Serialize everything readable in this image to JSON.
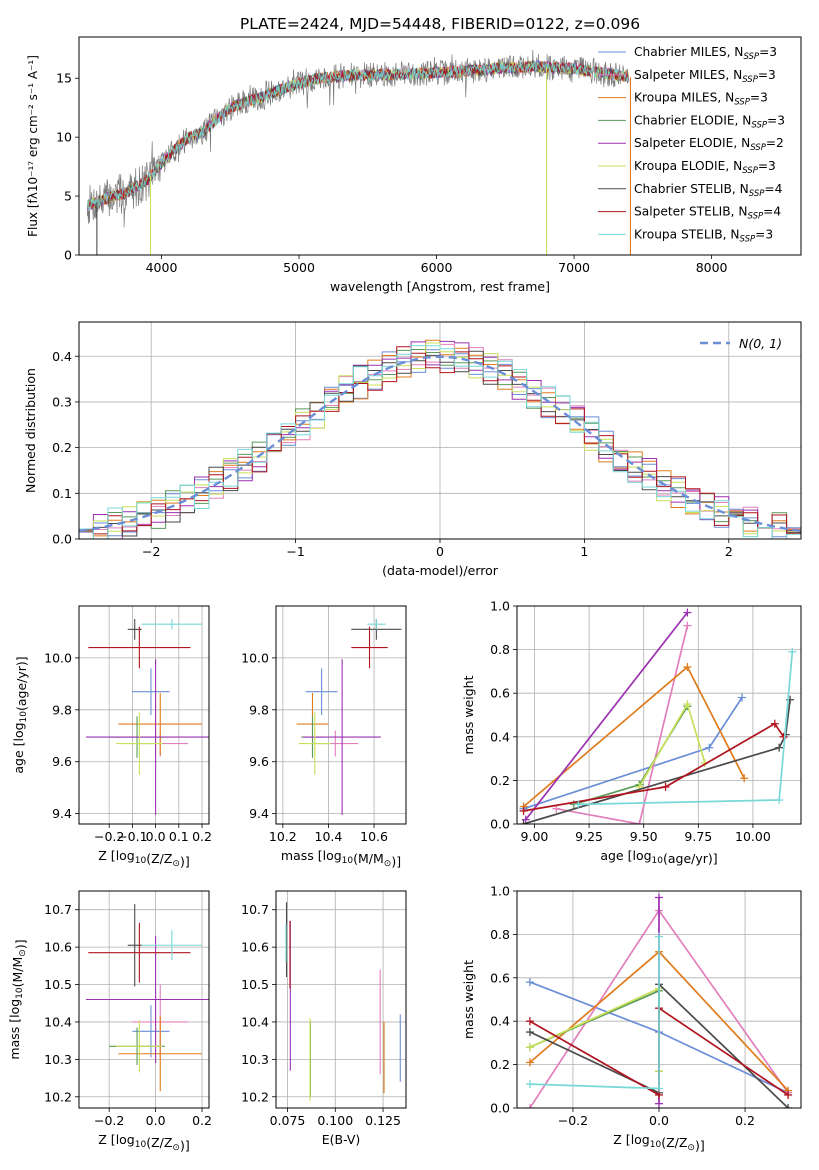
{
  "figure_title": "PLATE=2424, MJD=54448, FIBERID=0122, z=0.096",
  "colors": {
    "Chabrier MILES": "#6a8fd8",
    "Salpeter MILES": "#e27fbc",
    "Kroupa MILES": "#e07b1c",
    "Chabrier ELODIE": "#5a9a5a",
    "Salpeter ELODIE": "#9b30b0",
    "Kroupa ELODIE": "#c8e05a",
    "Chabrier STELIB": "#4a4a4a",
    "Salpeter STELIB": "#b0141e",
    "Kroupa STELIB": "#78d8d8"
  },
  "chart_data": [
    {
      "id": "spectrum",
      "type": "line",
      "title": "PLATE=2424, MJD=54448, FIBERID=0122, z=0.096",
      "xlabel": "wavelength [Angstrom, rest frame]",
      "ylabel": "Flux [fλ10⁻¹⁷ erg cm⁻² s⁻¹ A⁻¹]",
      "xlim": [
        3400,
        8650
      ],
      "ylim": [
        0,
        18.5
      ],
      "xticks": [
        4000,
        5000,
        6000,
        7000,
        8000
      ],
      "yticks": [
        0,
        5,
        10,
        15
      ],
      "grid": false,
      "legend_position": "top-right",
      "legend": [
        {
          "model": "Chabrier MILES",
          "n": "3"
        },
        {
          "model": "Salpeter MILES",
          "n": "3"
        },
        {
          "model": "Kroupa MILES",
          "n": "3"
        },
        {
          "model": "Chabrier ELODIE",
          "n": "3"
        },
        {
          "model": "Salpeter ELODIE",
          "n": "2"
        },
        {
          "model": "Kroupa ELODIE",
          "n": "3"
        },
        {
          "model": "Chabrier STELIB",
          "n": "4"
        },
        {
          "model": "Salpeter STELIB",
          "n": "4"
        },
        {
          "model": "Kroupa STELIB",
          "n": "3"
        }
      ],
      "continuum": [
        [
          3460,
          4.2
        ],
        [
          3600,
          4.8
        ],
        [
          3750,
          5.3
        ],
        [
          3900,
          6.4
        ],
        [
          4000,
          7.8
        ],
        [
          4100,
          9.0
        ],
        [
          4200,
          10.0
        ],
        [
          4300,
          10.4
        ],
        [
          4400,
          11.5
        ],
        [
          4500,
          12.5
        ],
        [
          4700,
          13.3
        ],
        [
          4900,
          14.2
        ],
        [
          5100,
          14.9
        ],
        [
          5300,
          15.2
        ],
        [
          5600,
          15.3
        ],
        [
          5900,
          15.4
        ],
        [
          6100,
          15.5
        ],
        [
          6300,
          15.7
        ],
        [
          6500,
          15.9
        ],
        [
          6700,
          16.0
        ],
        [
          7000,
          15.8
        ],
        [
          7300,
          15.3
        ],
        [
          7400,
          15.1
        ]
      ],
      "dropouts": [
        {
          "x": 3530,
          "model": "Chabrier STELIB"
        },
        {
          "x": 3920,
          "model": "Kroupa ELODIE"
        },
        {
          "x": 6800,
          "model": "Kroupa ELODIE"
        },
        {
          "x": 7410,
          "model": "Kroupa MILES"
        }
      ]
    },
    {
      "id": "residuals",
      "type": "histogram",
      "xlabel": "(data-model)/error",
      "ylabel": "Normed distribution",
      "xlim": [
        -2.5,
        2.5
      ],
      "ylim": [
        0,
        0.475
      ],
      "xticks": [
        -2,
        -1,
        0,
        1,
        2
      ],
      "yticks": [
        0,
        0.1,
        0.2,
        0.3,
        0.4
      ],
      "grid": true,
      "bin_width": 0.1,
      "reference_curve": "gaussian",
      "legend_position": "top-right",
      "legend_label": "N(0, 1)",
      "reference_color": "#6a8fd8"
    },
    {
      "id": "age-vs-Z",
      "type": "errorbar",
      "xlabel": "Z [log10(Z/Z⊙)]",
      "ylabel": "age [log10(age/yr)]",
      "xlim": [
        -0.33,
        0.23
      ],
      "ylim": [
        9.36,
        10.2
      ],
      "xticks": [
        -0.2,
        -0.1,
        0.0,
        0.1,
        0.2
      ],
      "yticks": [
        9.4,
        9.6,
        9.8,
        10.0
      ],
      "grid": true,
      "points": [
        {
          "model": "Chabrier MILES",
          "x": -0.02,
          "xerr": 0.08,
          "y": 9.87,
          "yerr": 0.09
        },
        {
          "model": "Salpeter MILES",
          "x": 0.02,
          "xerr": 0.12,
          "y": 9.67,
          "yerr": 0.05
        },
        {
          "model": "Kroupa MILES",
          "x": 0.02,
          "xerr": 0.18,
          "y": 9.745,
          "yerr": 0.12
        },
        {
          "model": "Chabrier ELODIE",
          "x": -0.08,
          "xerr": 0.12,
          "y": 9.695,
          "yerr": 0.08
        },
        {
          "model": "Salpeter ELODIE",
          "x": 0.0,
          "xerr": 0.3,
          "y": 9.695,
          "yerr": 0.3
        },
        {
          "model": "Kroupa ELODIE",
          "x": -0.07,
          "xerr": 0.1,
          "y": 9.67,
          "yerr": 0.12
        },
        {
          "model": "Chabrier STELIB",
          "x": -0.09,
          "xerr": 0.03,
          "y": 10.11,
          "yerr": 0.04
        },
        {
          "model": "Salpeter STELIB",
          "x": -0.07,
          "xerr": 0.22,
          "y": 10.04,
          "yerr": 0.08
        },
        {
          "model": "Kroupa STELIB",
          "x": 0.07,
          "xerr": 0.13,
          "y": 10.13,
          "yerr": 0.02
        }
      ]
    },
    {
      "id": "age-vs-mass",
      "type": "errorbar",
      "xlabel": "mass [log10(M/M⊙)]",
      "ylabel": "",
      "xlim": [
        10.17,
        10.74
      ],
      "ylim": [
        9.36,
        10.2
      ],
      "xticks": [
        10.2,
        10.4,
        10.6
      ],
      "yticks": [
        9.4,
        9.6,
        9.8,
        10.0
      ],
      "grid": true,
      "points": [
        {
          "model": "Chabrier MILES",
          "x": 10.37,
          "xerr": 0.07,
          "y": 9.87,
          "yerr": 0.09
        },
        {
          "model": "Salpeter MILES",
          "x": 10.43,
          "xerr": 0.1,
          "y": 9.67,
          "yerr": 0.05
        },
        {
          "model": "Kroupa MILES",
          "x": 10.33,
          "xerr": 0.07,
          "y": 9.745,
          "yerr": 0.12
        },
        {
          "model": "Chabrier ELODIE",
          "x": 10.33,
          "xerr": 0.05,
          "y": 9.695,
          "yerr": 0.08
        },
        {
          "model": "Salpeter ELODIE",
          "x": 10.46,
          "xerr": 0.17,
          "y": 9.695,
          "yerr": 0.3
        },
        {
          "model": "Kroupa ELODIE",
          "x": 10.34,
          "xerr": 0.07,
          "y": 9.67,
          "yerr": 0.12
        },
        {
          "model": "Chabrier STELIB",
          "x": 10.61,
          "xerr": 0.11,
          "y": 10.11,
          "yerr": 0.04
        },
        {
          "model": "Salpeter STELIB",
          "x": 10.58,
          "xerr": 0.08,
          "y": 10.04,
          "yerr": 0.08
        },
        {
          "model": "Kroupa STELIB",
          "x": 10.61,
          "xerr": 0.04,
          "y": 10.13,
          "yerr": 0.02
        }
      ]
    },
    {
      "id": "massweight-vs-age",
      "type": "line",
      "xlabel": "age [log10(age/yr)]",
      "ylabel": "mass weight",
      "xlim": [
        8.92,
        10.22
      ],
      "ylim": [
        0,
        1.0
      ],
      "xticks": [
        9.0,
        9.25,
        9.5,
        9.75,
        10.0
      ],
      "yticks": [
        0.0,
        0.2,
        0.4,
        0.6,
        0.8,
        1.0
      ],
      "grid": true,
      "series": [
        {
          "model": "Chabrier MILES",
          "x": [
            8.95,
            9.8,
            9.95
          ],
          "y": [
            0.07,
            0.35,
            0.58
          ]
        },
        {
          "model": "Salpeter MILES",
          "x": [
            9.1,
            9.48,
            9.7
          ],
          "y": [
            0.07,
            0.0,
            0.91
          ]
        },
        {
          "model": "Kroupa MILES",
          "x": [
            8.95,
            9.7,
            9.96
          ],
          "y": [
            0.08,
            0.72,
            0.21
          ]
        },
        {
          "model": "Chabrier ELODIE",
          "x": [
            9.18,
            9.48,
            9.7
          ],
          "y": [
            0.09,
            0.18,
            0.54
          ]
        },
        {
          "model": "Salpeter ELODIE",
          "x": [
            8.96,
            9.7
          ],
          "y": [
            0.02,
            0.97
          ]
        },
        {
          "model": "Kroupa ELODIE",
          "x": [
            9.48,
            9.7,
            9.78
          ],
          "y": [
            0.17,
            0.55,
            0.28
          ]
        },
        {
          "model": "Chabrier STELIB",
          "x": [
            8.95,
            10.12,
            10.15,
            10.17
          ],
          "y": [
            0.0,
            0.35,
            0.41,
            0.57
          ]
        },
        {
          "model": "Salpeter STELIB",
          "x": [
            8.95,
            9.6,
            10.1,
            10.14
          ],
          "y": [
            0.06,
            0.17,
            0.46,
            0.4
          ]
        },
        {
          "model": "Kroupa STELIB",
          "x": [
            9.2,
            10.12,
            10.18
          ],
          "y": [
            0.09,
            0.11,
            0.79
          ]
        }
      ]
    },
    {
      "id": "mass-vs-Z",
      "type": "errorbar",
      "xlabel": "Z [log10(Z/Z⊙)]",
      "ylabel": "mass [log10(M/M⊙)]",
      "xlim": [
        -0.33,
        0.23
      ],
      "ylim": [
        10.17,
        10.75
      ],
      "xticks": [
        -0.2,
        0.0,
        0.2
      ],
      "yticks": [
        10.2,
        10.3,
        10.4,
        10.5,
        10.6,
        10.7
      ],
      "grid": true,
      "points": [
        {
          "model": "Chabrier MILES",
          "x": -0.02,
          "xerr": 0.08,
          "y": 10.375,
          "yerr": 0.07
        },
        {
          "model": "Salpeter MILES",
          "x": 0.02,
          "xerr": 0.12,
          "y": 10.4,
          "yerr": 0.1
        },
        {
          "model": "Kroupa MILES",
          "x": 0.02,
          "xerr": 0.18,
          "y": 10.315,
          "yerr": 0.1
        },
        {
          "model": "Chabrier ELODIE",
          "x": -0.08,
          "xerr": 0.12,
          "y": 10.335,
          "yerr": 0.05
        },
        {
          "model": "Salpeter ELODIE",
          "x": 0.0,
          "xerr": 0.3,
          "y": 10.46,
          "yerr": 0.17
        },
        {
          "model": "Kroupa ELODIE",
          "x": -0.07,
          "xerr": 0.1,
          "y": 10.335,
          "yerr": 0.07
        },
        {
          "model": "Chabrier STELIB",
          "x": -0.09,
          "xerr": 0.03,
          "y": 10.605,
          "yerr": 0.11
        },
        {
          "model": "Salpeter STELIB",
          "x": -0.07,
          "xerr": 0.22,
          "y": 10.585,
          "yerr": 0.08
        },
        {
          "model": "Kroupa STELIB",
          "x": 0.07,
          "xerr": 0.13,
          "y": 10.605,
          "yerr": 0.04
        }
      ]
    },
    {
      "id": "mass-vs-ebv",
      "type": "errorbar",
      "xlabel": "E(B-V)",
      "ylabel": "",
      "xlim": [
        0.069,
        0.137
      ],
      "ylim": [
        10.17,
        10.75
      ],
      "xticks": [
        0.075,
        0.1,
        0.125
      ],
      "yticks": [
        10.2,
        10.3,
        10.4,
        10.5,
        10.6,
        10.7
      ],
      "grid": true,
      "points": [
        {
          "model": "Chabrier MILES",
          "x": 0.134,
          "xerr": 0.0,
          "y": 10.33,
          "yerr": 0.09
        },
        {
          "model": "Salpeter MILES",
          "x": 0.1235,
          "xerr": 0.0,
          "y": 10.4,
          "yerr": 0.14
        },
        {
          "model": "Kroupa MILES",
          "x": 0.1255,
          "xerr": 0.0,
          "y": 10.305,
          "yerr": 0.095
        },
        {
          "model": "Chabrier ELODIE",
          "x": 0.087,
          "xerr": 0.0,
          "y": 10.3,
          "yerr": 0.1
        },
        {
          "model": "Salpeter ELODIE",
          "x": 0.0765,
          "xerr": 0.0,
          "y": 10.47,
          "yerr": 0.2
        },
        {
          "model": "Kroupa ELODIE",
          "x": 0.0868,
          "xerr": 0.0,
          "y": 10.3,
          "yerr": 0.11
        },
        {
          "model": "Chabrier STELIB",
          "x": 0.0745,
          "xerr": 0.0,
          "y": 10.62,
          "yerr": 0.1
        },
        {
          "model": "Salpeter STELIB",
          "x": 0.0763,
          "xerr": 0.0,
          "y": 10.58,
          "yerr": 0.09
        },
        {
          "model": "Kroupa STELIB",
          "x": 0.0742,
          "xerr": 0.0,
          "y": 10.61,
          "yerr": 0.05
        }
      ]
    },
    {
      "id": "massweight-vs-Z",
      "type": "line",
      "xlabel": "Z [log10(Z/Z⊙)]",
      "ylabel": "mass weight",
      "xlim": [
        -0.33,
        0.33
      ],
      "ylim": [
        0,
        1.0
      ],
      "xticks": [
        -0.2,
        0.0,
        0.2
      ],
      "yticks": [
        0.0,
        0.2,
        0.4,
        0.6,
        0.8,
        1.0
      ],
      "grid": true,
      "series": [
        {
          "model": "Chabrier MILES",
          "x": [
            -0.3,
            0.0,
            0.3
          ],
          "y": [
            0.58,
            0.35,
            0.07
          ]
        },
        {
          "model": "Salpeter MILES",
          "x": [
            -0.3,
            0.0,
            0.3
          ],
          "y": [
            0.0,
            0.91,
            0.07
          ]
        },
        {
          "model": "Kroupa MILES",
          "x": [
            -0.3,
            0.0,
            0.3
          ],
          "y": [
            0.21,
            0.72,
            0.08
          ]
        },
        {
          "model": "Chabrier ELODIE",
          "x": [
            -0.3,
            0.0,
            0.0
          ],
          "y": [
            0.28,
            0.54,
            0.17
          ]
        },
        {
          "model": "Salpeter ELODIE",
          "x": [
            0.0,
            0.0
          ],
          "y": [
            0.02,
            0.97
          ]
        },
        {
          "model": "Kroupa ELODIE",
          "x": [
            -0.3,
            0.0,
            0.0
          ],
          "y": [
            0.28,
            0.55,
            0.17
          ]
        },
        {
          "model": "Chabrier STELIB",
          "x": [
            -0.3,
            0.0,
            0.0,
            0.3
          ],
          "y": [
            0.35,
            0.07,
            0.57,
            0.0
          ]
        },
        {
          "model": "Salpeter STELIB",
          "x": [
            -0.3,
            0.0,
            0.0,
            0.3
          ],
          "y": [
            0.4,
            0.06,
            0.46,
            0.06
          ]
        },
        {
          "model": "Kroupa STELIB",
          "x": [
            -0.3,
            0.0,
            0.0
          ],
          "y": [
            0.11,
            0.09,
            0.79
          ]
        }
      ]
    }
  ]
}
